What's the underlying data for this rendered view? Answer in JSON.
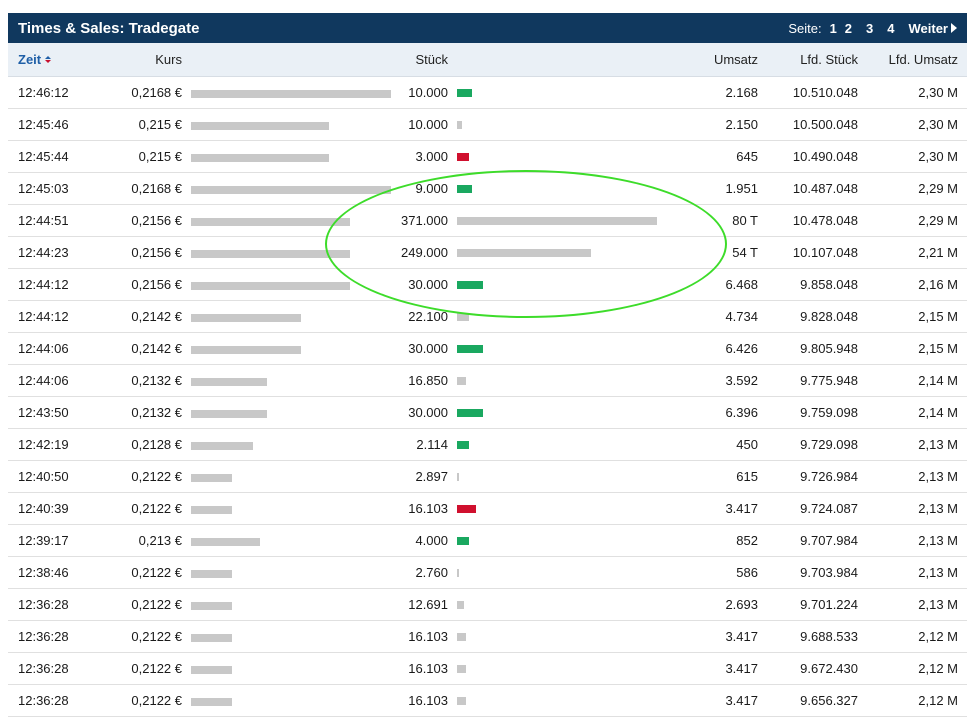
{
  "header": {
    "title": "Times & Sales: Tradegate",
    "pager_label": "Seite:",
    "pages": [
      "1",
      "2",
      "3",
      "4"
    ],
    "next_label": "Weiter"
  },
  "columns": {
    "time": "Zeit",
    "price": "Kurs",
    "volume": "Stück",
    "turnover": "Umsatz",
    "cum_volume": "Lfd. Stück",
    "cum_turnover": "Lfd. Umsatz"
  },
  "colors": {
    "up": "#1aa860",
    "down": "#d0102e",
    "neutral": "#c8c8c8",
    "header_bg": "#10385e",
    "highlight": "#3ddc2a"
  },
  "rows": [
    {
      "time": "12:46:12",
      "price": "0,2168 €",
      "volume": "10.000",
      "turnover": "2.168",
      "cum_volume": "10.510.048",
      "cum_turnover": "2,30 M",
      "price_num": 0.2168,
      "volume_num": 10000,
      "dir": "up"
    },
    {
      "time": "12:45:46",
      "price": "0,215 €",
      "volume": "10.000",
      "turnover": "2.150",
      "cum_volume": "10.500.048",
      "cum_turnover": "2,30 M",
      "price_num": 0.215,
      "volume_num": 10000,
      "dir": "neutral"
    },
    {
      "time": "12:45:44",
      "price": "0,215 €",
      "volume": "3.000",
      "turnover": "645",
      "cum_volume": "10.490.048",
      "cum_turnover": "2,30 M",
      "price_num": 0.215,
      "volume_num": 3000,
      "dir": "down"
    },
    {
      "time": "12:45:03",
      "price": "0,2168 €",
      "volume": "9.000",
      "turnover": "1.951",
      "cum_volume": "10.487.048",
      "cum_turnover": "2,29 M",
      "price_num": 0.2168,
      "volume_num": 9000,
      "dir": "up"
    },
    {
      "time": "12:44:51",
      "price": "0,2156 €",
      "volume": "371.000",
      "turnover": "80 T",
      "cum_volume": "10.478.048",
      "cum_turnover": "2,29 M",
      "price_num": 0.2156,
      "volume_num": 371000,
      "dir": "neutral"
    },
    {
      "time": "12:44:23",
      "price": "0,2156 €",
      "volume": "249.000",
      "turnover": "54 T",
      "cum_volume": "10.107.048",
      "cum_turnover": "2,21 M",
      "price_num": 0.2156,
      "volume_num": 249000,
      "dir": "neutral"
    },
    {
      "time": "12:44:12",
      "price": "0,2156 €",
      "volume": "30.000",
      "turnover": "6.468",
      "cum_volume": "9.858.048",
      "cum_turnover": "2,16 M",
      "price_num": 0.2156,
      "volume_num": 30000,
      "dir": "up"
    },
    {
      "time": "12:44:12",
      "price": "0,2142 €",
      "volume": "22.100",
      "turnover": "4.734",
      "cum_volume": "9.828.048",
      "cum_turnover": "2,15 M",
      "price_num": 0.2142,
      "volume_num": 22100,
      "dir": "neutral"
    },
    {
      "time": "12:44:06",
      "price": "0,2142 €",
      "volume": "30.000",
      "turnover": "6.426",
      "cum_volume": "9.805.948",
      "cum_turnover": "2,15 M",
      "price_num": 0.2142,
      "volume_num": 30000,
      "dir": "up"
    },
    {
      "time": "12:44:06",
      "price": "0,2132 €",
      "volume": "16.850",
      "turnover": "3.592",
      "cum_volume": "9.775.948",
      "cum_turnover": "2,14 M",
      "price_num": 0.2132,
      "volume_num": 16850,
      "dir": "neutral"
    },
    {
      "time": "12:43:50",
      "price": "0,2132 €",
      "volume": "30.000",
      "turnover": "6.396",
      "cum_volume": "9.759.098",
      "cum_turnover": "2,14 M",
      "price_num": 0.2132,
      "volume_num": 30000,
      "dir": "up"
    },
    {
      "time": "12:42:19",
      "price": "0,2128 €",
      "volume": "2.114",
      "turnover": "450",
      "cum_volume": "9.729.098",
      "cum_turnover": "2,13 M",
      "price_num": 0.2128,
      "volume_num": 2114,
      "dir": "up"
    },
    {
      "time": "12:40:50",
      "price": "0,2122 €",
      "volume": "2.897",
      "turnover": "615",
      "cum_volume": "9.726.984",
      "cum_turnover": "2,13 M",
      "price_num": 0.2122,
      "volume_num": 2897,
      "dir": "neutral"
    },
    {
      "time": "12:40:39",
      "price": "0,2122 €",
      "volume": "16.103",
      "turnover": "3.417",
      "cum_volume": "9.724.087",
      "cum_turnover": "2,13 M",
      "price_num": 0.2122,
      "volume_num": 16103,
      "dir": "down"
    },
    {
      "time": "12:39:17",
      "price": "0,213 €",
      "volume": "4.000",
      "turnover": "852",
      "cum_volume": "9.707.984",
      "cum_turnover": "2,13 M",
      "price_num": 0.213,
      "volume_num": 4000,
      "dir": "up"
    },
    {
      "time": "12:38:46",
      "price": "0,2122 €",
      "volume": "2.760",
      "turnover": "586",
      "cum_volume": "9.703.984",
      "cum_turnover": "2,13 M",
      "price_num": 0.2122,
      "volume_num": 2760,
      "dir": "neutral"
    },
    {
      "time": "12:36:28",
      "price": "0,2122 €",
      "volume": "12.691",
      "turnover": "2.693",
      "cum_volume": "9.701.224",
      "cum_turnover": "2,13 M",
      "price_num": 0.2122,
      "volume_num": 12691,
      "dir": "neutral"
    },
    {
      "time": "12:36:28",
      "price": "0,2122 €",
      "volume": "16.103",
      "turnover": "3.417",
      "cum_volume": "9.688.533",
      "cum_turnover": "2,12 M",
      "price_num": 0.2122,
      "volume_num": 16103,
      "dir": "neutral"
    },
    {
      "time": "12:36:28",
      "price": "0,2122 €",
      "volume": "16.103",
      "turnover": "3.417",
      "cum_volume": "9.672.430",
      "cum_turnover": "2,12 M",
      "price_num": 0.2122,
      "volume_num": 16103,
      "dir": "neutral"
    },
    {
      "time": "12:36:28",
      "price": "0,2122 €",
      "volume": "16.103",
      "turnover": "3.417",
      "cum_volume": "9.656.327",
      "cum_turnover": "2,12 M",
      "price_num": 0.2122,
      "volume_num": 16103,
      "dir": "neutral"
    }
  ]
}
